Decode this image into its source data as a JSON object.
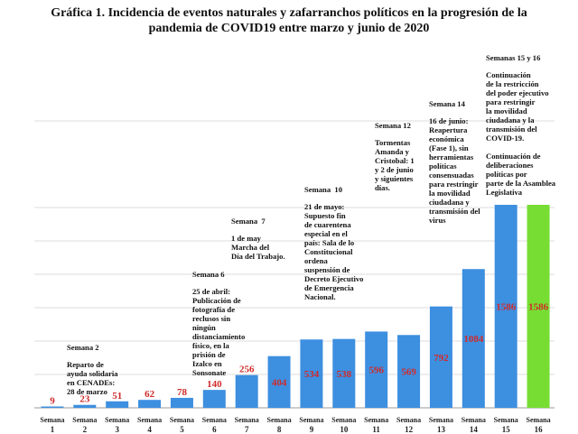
{
  "chart_data": {
    "type": "bar",
    "title_line1": "Gráfica 1. Incidencia de eventos naturales y zafarranchos políticos en la progresión de la",
    "title_line2": "pandemia de COVID19 entre marzo y junio de 2020",
    "categories": [
      "1",
      "2",
      "3",
      "4",
      "5",
      "6",
      "7",
      "8",
      "9",
      "10",
      "11",
      "12",
      "13",
      "14",
      "15",
      "16"
    ],
    "category_prefix": "Semana",
    "values": [
      9,
      23,
      51,
      62,
      78,
      140,
      256,
      404,
      534,
      538,
      596,
      569,
      792,
      1084,
      1586,
      1586
    ],
    "ylim": [
      0,
      1586
    ],
    "grid": true,
    "bar_color": "#3d8fe0",
    "highlight_color": "#77dd33",
    "highlight_index": 15,
    "label_color": "#d12a2a",
    "annotations": [
      {
        "week": 2,
        "heading": "Semana 2",
        "text": "Reparto de\nayuda solidaria\nen CENADEs:\n28 de marzo"
      },
      {
        "week": 6,
        "heading": "Semana 6",
        "text": "25 de abril:\nPublicación de\nfotografía de\nreclusos sin\nningún\ndistanciamiento\nfísico, en la\nprisión de\nIzalco en\nSonsonate"
      },
      {
        "week": 7,
        "heading": "Semana  7",
        "text": "1 de may\nMarcha del\nDía del Trabajo."
      },
      {
        "week": 10,
        "heading": "Semana  10",
        "text": "21 de mayo:\nSupuesto fin\nde cuarentena\nespecial en el\npaís: Sala de lo\nConstitucional\nordena\nsuspensión de\nDecreto Ejecutivo\nde Emergencia\nNacional."
      },
      {
        "week": 12,
        "heading": "Semana 12",
        "text": "Tormentas\nAmanda y\nCristobal: 1\ny 2 de junio\ny siguientes\ndías."
      },
      {
        "week": 14,
        "heading": "Semana 14",
        "text": "16 de junio:\nReapertura\neconómica\n(Fase 1), sin\nherramientas\npolíticas\nconsensuadas\npara restringir\nla movilidad\nciudadana y\ntransmisión del\nvirus"
      },
      {
        "week": 15,
        "heading": "Semanas 15 y 16",
        "text": "Continuación\nde la restricción\ndel poder ejecutivo\npara restringir\nla movilidad\nciudadana y la\ntransmisión del\nCOVID-19.\n\nContinuación de\ndeliberaciones\npolíticas por\nparte de la Asamblea\nLegislativa"
      }
    ]
  }
}
